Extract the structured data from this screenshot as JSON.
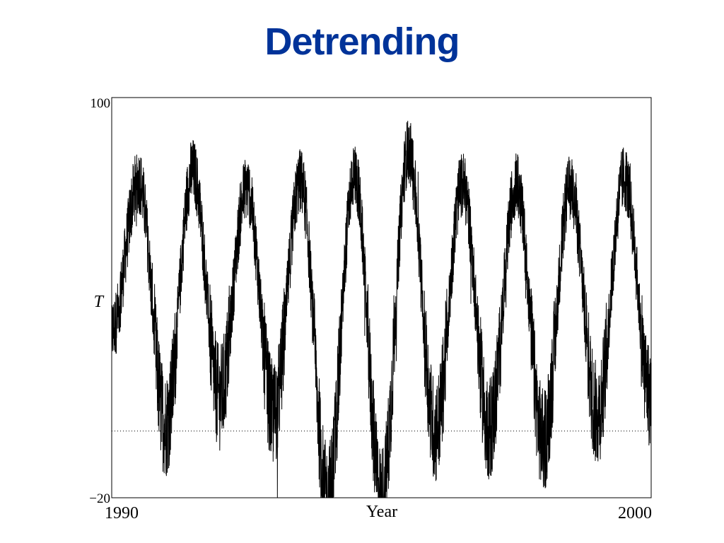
{
  "slide": {
    "title": "Detrending",
    "title_color": "#003399"
  },
  "chart_data": {
    "type": "line",
    "title": "",
    "xlabel": "Year",
    "ylabel": "T",
    "xlim": [
      1990,
      2000
    ],
    "ylim": [
      -20,
      100
    ],
    "x_tick_labels": [
      "1990",
      "2000"
    ],
    "y_tick_labels": [
      "100",
      "−20"
    ],
    "grid": false,
    "line_color": "#000000",
    "reference_line": {
      "y": 0,
      "style": "dotted"
    },
    "annual_cycle": {
      "peaks": [
        {
          "year": 1990.5,
          "value": 75
        },
        {
          "year": 1991.5,
          "value": 78
        },
        {
          "year": 1992.5,
          "value": 73
        },
        {
          "year": 1993.5,
          "value": 75
        },
        {
          "year": 1994.5,
          "value": 77
        },
        {
          "year": 1995.5,
          "value": 84
        },
        {
          "year": 1996.5,
          "value": 74
        },
        {
          "year": 1997.5,
          "value": 74
        },
        {
          "year": 1998.5,
          "value": 73
        },
        {
          "year": 1999.5,
          "value": 76
        }
      ],
      "troughs": [
        {
          "year": 1991.0,
          "value": 2
        },
        {
          "year": 1992.0,
          "value": 10
        },
        {
          "year": 1993.0,
          "value": 5
        },
        {
          "year": 1994.0,
          "value": -20
        },
        {
          "year": 1995.0,
          "value": -20
        },
        {
          "year": 1996.0,
          "value": 0
        },
        {
          "year": 1997.0,
          "value": 1
        },
        {
          "year": 1998.0,
          "value": -3
        },
        {
          "year": 1999.0,
          "value": 5
        },
        {
          "year": 2000.0,
          "value": 10
        }
      ]
    }
  }
}
